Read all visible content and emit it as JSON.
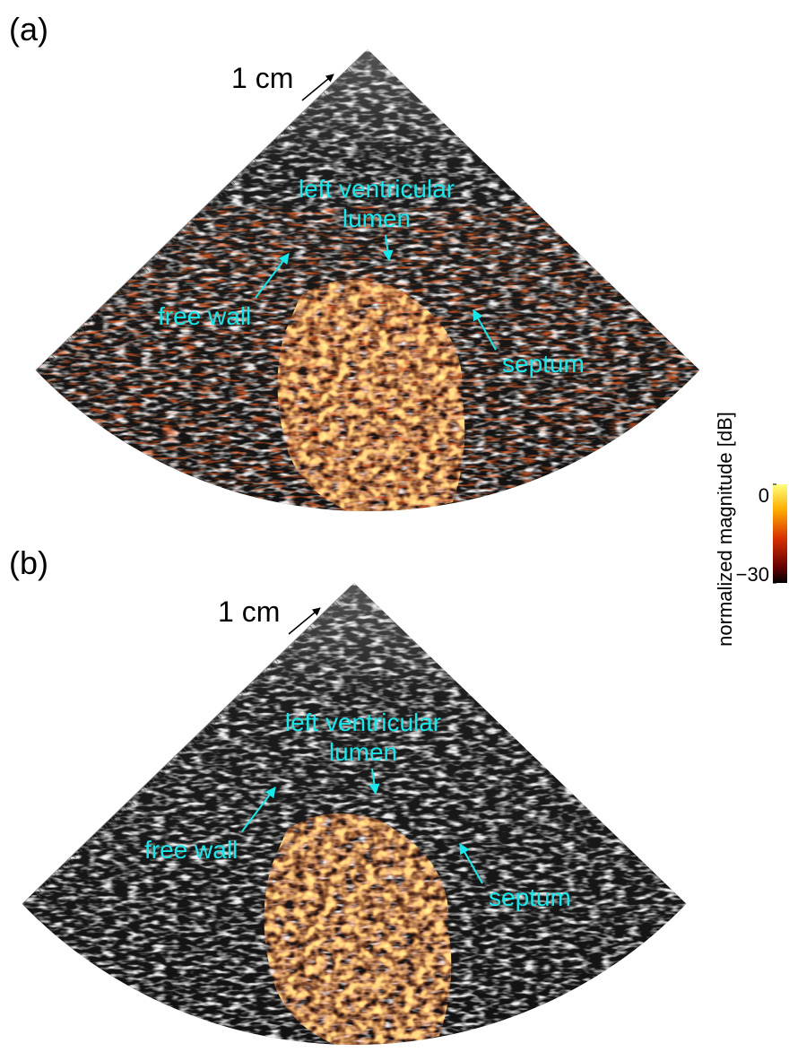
{
  "panels": [
    {
      "label": "(a)",
      "scale_label": "1 cm",
      "annotations": {
        "lumen": [
          "left ventricular",
          "lumen"
        ],
        "free_wall": "free wall",
        "septum": "septum"
      }
    },
    {
      "label": "(b)",
      "scale_label": "1 cm",
      "annotations": {
        "lumen": [
          "left ventricular",
          "lumen"
        ],
        "free_wall": "free wall",
        "septum": "septum"
      }
    }
  ],
  "colorbar": {
    "label": "normalized magnitude [dB]",
    "lim": [
      -30,
      0
    ],
    "ticks": [
      0,
      {
        "value": -30,
        "label": "−30"
      }
    ]
  }
}
